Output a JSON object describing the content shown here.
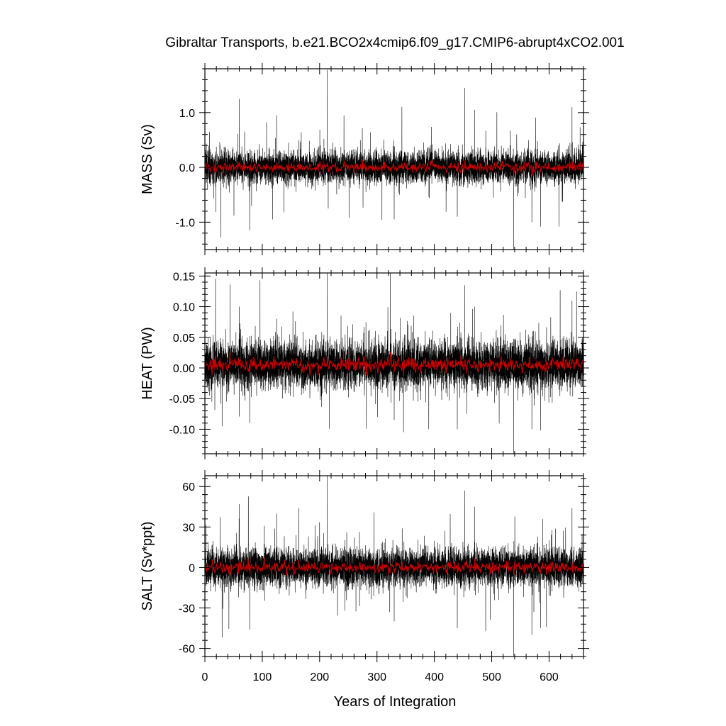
{
  "figure": {
    "title": "Gibraltar Transports, b.e21.BCO2x4cmip6.f09_g17.CMIP6-abrupt4xCO2.001",
    "xlabel": "Years of Integration"
  },
  "chart_data": [
    {
      "type": "line",
      "title": "",
      "xlabel": "",
      "ylabel": "MASS (Sv)",
      "xlim": [
        0,
        660
      ],
      "ylim": [
        -1.5,
        1.8
      ],
      "xticks": [
        0,
        100,
        200,
        300,
        400,
        500,
        600
      ],
      "yticks": [
        -1.0,
        0.0,
        1.0
      ],
      "ytick_labels": [
        "-1.0",
        "0.0",
        "1.0"
      ],
      "noise_range": [
        -0.25,
        0.25
      ],
      "grid": false,
      "series": [
        {
          "name": "",
          "color": "#000000",
          "description_values": "monthly transport, dense noise about 0",
          "values_summary": {
            "min": -1.5,
            "max": 1.8,
            "mean": 0.0
          },
          "spikes": [
            [
              8,
              0.65
            ],
            [
              28,
              -1.28
            ],
            [
              60,
              1.25
            ],
            [
              78,
              -1.15
            ],
            [
              118,
              -0.95
            ],
            [
              125,
              0.95
            ],
            [
              213,
              1.78
            ],
            [
              215,
              -0.75
            ],
            [
              330,
              -0.95
            ],
            [
              440,
              -0.9
            ],
            [
              453,
              1.45
            ],
            [
              470,
              1.05
            ],
            [
              538,
              -1.52
            ],
            [
              570,
              -1.0
            ],
            [
              585,
              -1.08
            ],
            [
              640,
              1.1
            ]
          ]
        },
        {
          "name": "",
          "color": "#cc0000",
          "description_values": "annual mean, near 0",
          "values_summary": {
            "min": -0.12,
            "max": 0.13,
            "mean": 0.0
          }
        }
      ]
    },
    {
      "type": "line",
      "title": "",
      "xlabel": "",
      "ylabel": "HEAT (PW)",
      "xlim": [
        0,
        660
      ],
      "ylim": [
        -0.14,
        0.155
      ],
      "xticks": [
        0,
        100,
        200,
        300,
        400,
        500,
        600
      ],
      "yticks": [
        -0.1,
        -0.05,
        0.0,
        0.05,
        0.1,
        0.15
      ],
      "ytick_labels": [
        "-0.10",
        "-0.05",
        "0.00",
        "0.05",
        "0.10",
        "0.15"
      ],
      "noise_range": [
        -0.03,
        0.035
      ],
      "grid": false,
      "series": [
        {
          "name": "",
          "color": "#000000",
          "description_values": "monthly transport, dense noise about 0.005",
          "values_summary": {
            "min": -0.14,
            "max": 0.155,
            "mean": 0.005
          },
          "spikes": [
            [
              30,
              -0.095
            ],
            [
              60,
              0.1
            ],
            [
              78,
              -0.09
            ],
            [
              125,
              0.08
            ],
            [
              213,
              0.155
            ],
            [
              330,
              -0.085
            ],
            [
              440,
              -0.1
            ],
            [
              453,
              0.135
            ],
            [
              470,
              0.1
            ],
            [
              538,
              -0.14
            ],
            [
              570,
              -0.1
            ],
            [
              585,
              -0.102
            ],
            [
              640,
              0.11
            ]
          ]
        },
        {
          "name": "",
          "color": "#cc0000",
          "description_values": "annual mean, near 0.005",
          "values_summary": {
            "min": -0.012,
            "max": 0.02,
            "mean": 0.005
          }
        }
      ]
    },
    {
      "type": "line",
      "title": "",
      "xlabel": "Years of Integration",
      "ylabel": "SALT (Sv*ppt)",
      "xlim": [
        0,
        660
      ],
      "ylim": [
        -66,
        68
      ],
      "xticks": [
        0,
        100,
        200,
        300,
        400,
        500,
        600
      ],
      "xtick_labels": [
        "0",
        "100",
        "200",
        "300",
        "400",
        "500",
        "600"
      ],
      "yticks": [
        -60,
        -30,
        0,
        30,
        60
      ],
      "ytick_labels": [
        "-60",
        "-30",
        "0",
        "30",
        "60"
      ],
      "noise_range": [
        -12,
        12
      ],
      "grid": false,
      "series": [
        {
          "name": "",
          "color": "#000000",
          "description_values": "monthly transport, dense noise about 0",
          "values_summary": {
            "min": -66,
            "max": 68,
            "mean": 0
          },
          "spikes": [
            [
              30,
              -52
            ],
            [
              60,
              47
            ],
            [
              78,
              -46
            ],
            [
              125,
              40
            ],
            [
              213,
              68
            ],
            [
              330,
              -40
            ],
            [
              440,
              -45
            ],
            [
              453,
              57
            ],
            [
              470,
              45
            ],
            [
              538,
              -66
            ],
            [
              570,
              -50
            ],
            [
              585,
              -45
            ],
            [
              640,
              44
            ]
          ]
        },
        {
          "name": "",
          "color": "#cc0000",
          "description_values": "annual mean, near 0",
          "values_summary": {
            "min": -6,
            "max": 5,
            "mean": 0
          }
        }
      ]
    }
  ]
}
